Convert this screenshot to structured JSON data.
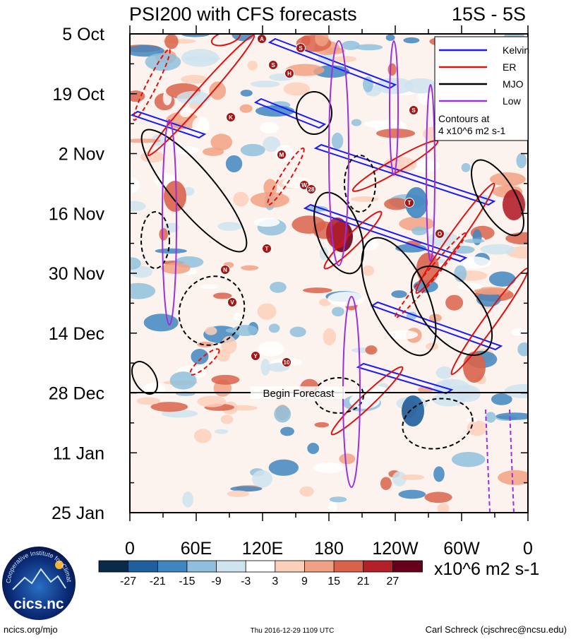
{
  "chart_data": {
    "type": "heatmap",
    "title": "PSI200 with CFS forecasts",
    "region_label": "15S - 5S",
    "y_axis": {
      "orientation": "time, increasing downward",
      "tick_labels": [
        "5 Oct",
        "19 Oct",
        "2 Nov",
        "16 Nov",
        "30 Nov",
        "14 Dec",
        "28 Dec",
        "11 Jan",
        "25 Jan"
      ],
      "range": [
        "2016-10-05",
        "2017-01-25"
      ]
    },
    "x_axis": {
      "name": "longitude",
      "tick_labels": [
        "0",
        "60E",
        "120E",
        "180",
        "120W",
        "60W",
        "0"
      ],
      "range_deg_east": [
        0,
        360
      ]
    },
    "forecast_marker": {
      "date": "2016-12-28",
      "label": "Begin Forecast"
    },
    "colorbar": {
      "tick_labels": [
        "-27",
        "-21",
        "-15",
        "-9",
        "-3",
        "3",
        "9",
        "15",
        "21",
        "27"
      ],
      "units": "x10^6 m2 s-1",
      "colors": [
        "#0a2a4a",
        "#1f5f9e",
        "#3f86c0",
        "#8fbfdc",
        "#cfe3ef",
        "#ffffff",
        "#fbd0bb",
        "#f1a183",
        "#d9634a",
        "#b3202a",
        "#67001a"
      ]
    },
    "legend": {
      "entries": [
        {
          "name": "Kelvin",
          "color": "#1a1aff"
        },
        {
          "name": "ER",
          "color": "#e01010"
        },
        {
          "name": "MJO",
          "color": "#000000"
        },
        {
          "name": "Low",
          "color": "#9b30e0"
        }
      ],
      "note_line1": "Contours at",
      "note_line2": "4 x10^6 m2 s-1",
      "placement": "top-right"
    },
    "storm_markers": [
      "A",
      "S",
      "S",
      "H",
      "S",
      "K",
      "M",
      "W",
      "28",
      "T",
      "T",
      "O",
      "N",
      "V",
      "Y",
      "10"
    ]
  },
  "footer": {
    "logo_text": "cics.nc",
    "logo_ring_text": "Cooperative Institute for Climate and Satellites",
    "left": "ncics.org/mjo",
    "center": "Thu 2016-12-29 1109 UTC",
    "right": "Carl Schreck (cjschrec@ncsu.edu)"
  }
}
